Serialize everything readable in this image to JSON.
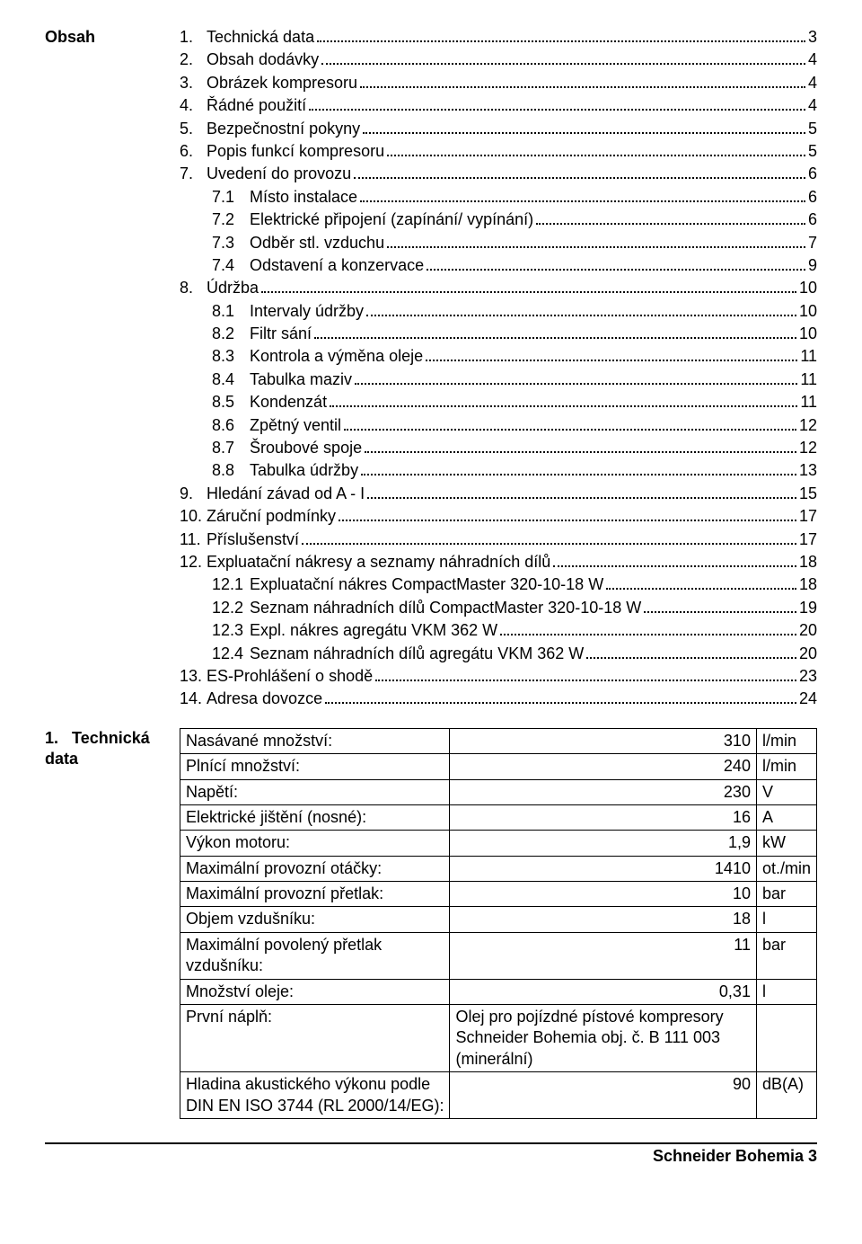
{
  "toc_heading": "Obsah",
  "toc": [
    {
      "n": "1.",
      "t": "Technická data",
      "p": "3",
      "lvl": 0
    },
    {
      "n": "2.",
      "t": "Obsah dodávky",
      "p": "4",
      "lvl": 0
    },
    {
      "n": "3.",
      "t": "Obrázek kompresoru",
      "p": "4",
      "lvl": 0
    },
    {
      "n": "4.",
      "t": "Řádné použití",
      "p": "4",
      "lvl": 0
    },
    {
      "n": "5.",
      "t": "Bezpečnostní pokyny",
      "p": "5",
      "lvl": 0
    },
    {
      "n": "6.",
      "t": "Popis funkcí kompresoru",
      "p": "5",
      "lvl": 0
    },
    {
      "n": "7.",
      "t": "Uvedení do provozu",
      "p": "6",
      "lvl": 0
    },
    {
      "n": "7.1",
      "t": "Místo instalace",
      "p": "6",
      "lvl": 1
    },
    {
      "n": "7.2",
      "t": "Elektrické připojení (zapínání/ vypínání)",
      "p": "6",
      "lvl": 1
    },
    {
      "n": "7.3",
      "t": "Odběr stl. vzduchu",
      "p": "7",
      "lvl": 1
    },
    {
      "n": "7.4",
      "t": "Odstavení a konzervace",
      "p": "9",
      "lvl": 1
    },
    {
      "n": "8.",
      "t": "Údržba",
      "p": "10",
      "lvl": 0
    },
    {
      "n": "8.1",
      "t": "Intervaly údržby",
      "p": "10",
      "lvl": 1
    },
    {
      "n": "8.2",
      "t": "Filtr sání",
      "p": "10",
      "lvl": 1
    },
    {
      "n": "8.3",
      "t": "Kontrola a výměna oleje",
      "p": "11",
      "lvl": 1
    },
    {
      "n": "8.4",
      "t": "Tabulka maziv",
      "p": "11",
      "lvl": 1
    },
    {
      "n": "8.5",
      "t": "Kondenzát",
      "p": "11",
      "lvl": 1
    },
    {
      "n": "8.6",
      "t": "Zpětný ventil",
      "p": "12",
      "lvl": 1
    },
    {
      "n": "8.7",
      "t": "Šroubové spoje",
      "p": "12",
      "lvl": 1
    },
    {
      "n": "8.8",
      "t": "Tabulka údržby",
      "p": "13",
      "lvl": 1
    },
    {
      "n": "9.",
      "t": "Hledání závad od A - I",
      "p": "15",
      "lvl": 0
    },
    {
      "n": "10.",
      "t": "Záruční podmínky",
      "p": "17",
      "lvl": 0
    },
    {
      "n": "11.",
      "t": "Příslušenství",
      "p": "17",
      "lvl": 0
    },
    {
      "n": "12.",
      "t": "Expluatační nákresy a seznamy náhradních dílů",
      "p": "18",
      "lvl": 0
    },
    {
      "n": "12.1",
      "t": "Expluatační nákres CompactMaster 320-10-18 W",
      "p": "18",
      "lvl": 1
    },
    {
      "n": "12.2",
      "t": "Seznam náhradních dílů CompactMaster 320-10-18 W",
      "p": "19",
      "lvl": 1
    },
    {
      "n": "12.3",
      "t": "Expl. nákres agregátu VKM 362 W",
      "p": "20",
      "lvl": 1
    },
    {
      "n": "12.4",
      "t": "Seznam náhradních dílů agregátu VKM 362 W",
      "p": "20",
      "lvl": 1
    },
    {
      "n": "13.",
      "t": "ES-Prohlášení o shodě",
      "p": "23",
      "lvl": 0
    },
    {
      "n": "14.",
      "t": "Adresa dovozce",
      "p": "24",
      "lvl": 0
    }
  ],
  "section1_num": "1.",
  "section1_title": "Technická data",
  "spec_rows": [
    {
      "label": "Nasávané množství:",
      "val": "310",
      "unit": "l/min"
    },
    {
      "label": "Plnící množství:",
      "val": "240",
      "unit": "l/min"
    },
    {
      "label": "Napětí:",
      "val": "230",
      "unit": "V"
    },
    {
      "label": "Elektrické jištění (nosné):",
      "val": "16",
      "unit": "A"
    },
    {
      "label": "Výkon motoru:",
      "val": "1,9",
      "unit": "kW"
    },
    {
      "label": "Maximální provozní otáčky:",
      "val": "1410",
      "unit": "ot./min"
    },
    {
      "label": "Maximální provozní přetlak:",
      "val": "10",
      "unit": "bar"
    },
    {
      "label": "Objem vzdušníku:",
      "val": "18",
      "unit": "l"
    },
    {
      "label": "Maximální povolený přetlak vzdušníku:",
      "val": "11",
      "unit": "bar"
    },
    {
      "label": "Množství oleje:",
      "val": "0,31",
      "unit": "l"
    },
    {
      "label": "První náplň:",
      "val": "Olej pro pojízdné pístové kompresory Schneider Bohemia obj. č. B 111 003 (minerální)",
      "unit": ""
    },
    {
      "label": "Hladina akustického výkonu podle DIN EN ISO 3744 (RL 2000/14/EG):",
      "val": "90",
      "unit": "dB(A)"
    }
  ],
  "footer": "Schneider Bohemia 3"
}
